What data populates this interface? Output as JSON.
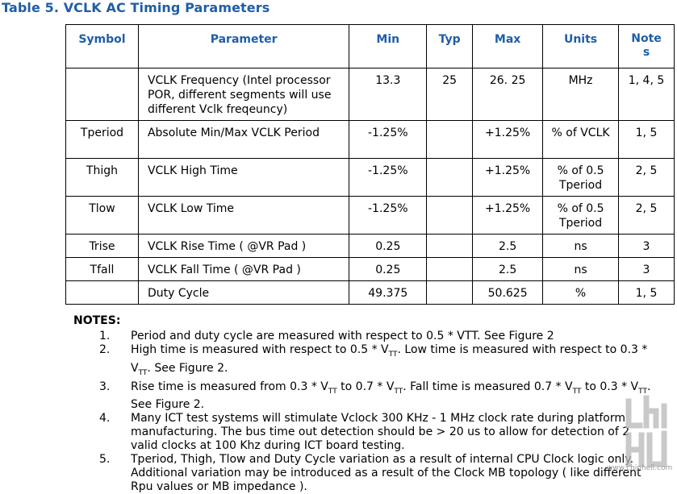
{
  "title": "Table 5. VCLK AC Timing Parameters",
  "headers": {
    "symbol": "Symbol",
    "parameter": "Parameter",
    "min": "Min",
    "typ": "Typ",
    "max": "Max",
    "units": "Units",
    "notes": "Note s"
  },
  "rows": [
    {
      "symbol": "",
      "parameter": "VCLK Frequency (Intel processor POR, different segments will use different Vclk freqeuncy)",
      "min": "13.3",
      "typ": "25",
      "max": "26. 25",
      "units": "MHz",
      "notes": "1, 4, 5"
    },
    {
      "symbol": "Tperiod",
      "parameter": "Absolute Min/Max VCLK Period",
      "min": "-1.25%",
      "typ": "",
      "max": "+1.25%",
      "units": "% of VCLK",
      "notes": "1, 5"
    },
    {
      "symbol": "Thigh",
      "parameter": "VCLK High Time",
      "min": "-1.25%",
      "typ": "",
      "max": "+1.25%",
      "units": "% of 0.5 Tperiod",
      "notes": "2, 5"
    },
    {
      "symbol": "Tlow",
      "parameter": "VCLK Low Time",
      "min": "-1.25%",
      "typ": "",
      "max": "+1.25%",
      "units": "% of 0.5 Tperiod",
      "notes": "2, 5"
    },
    {
      "symbol": "Trise",
      "parameter": "VCLK Rise Time ( @VR Pad )",
      "min": "0.25",
      "typ": "",
      "max": "2.5",
      "units": "ns",
      "notes": "3"
    },
    {
      "symbol": "Tfall",
      "parameter": "VCLK Fall Time ( @VR Pad )",
      "min": "0.25",
      "typ": "",
      "max": "2.5",
      "units": "ns",
      "notes": "3"
    },
    {
      "symbol": "",
      "parameter": "Duty Cycle",
      "min": "49.375",
      "typ": "",
      "max": "50.625",
      "units": "%",
      "notes": "1, 5"
    }
  ],
  "notes": {
    "title": "NOTES:",
    "items": [
      {
        "num": "1.",
        "parts": [
          "Period and duty cycle are measured with respect to 0.5 * VTT. See Figure 2"
        ]
      },
      {
        "num": "2.",
        "parts": [
          "High time is measured with respect to 0.5 * V",
          "TT",
          ". Low time is measured with respect to 0.3 * V",
          "TT",
          ". See Figure 2."
        ]
      },
      {
        "num": "3.",
        "parts": [
          "Rise time is measured from 0.3 * V",
          "TT",
          " to 0.7 * V",
          "TT",
          ". Fall time is measured 0.7 * V",
          "TT",
          " to 0.3 * V",
          "TT",
          ". See Figure 2."
        ]
      },
      {
        "num": "4.",
        "parts": [
          "Many ICT test systems will stimulate Vclock 300 KHz - 1 MHz clock rate during platform manufacturing.  The bus time out detection should be > 20 us to allow for detection of 2 valid clocks at 100 Khz during ICT board testing."
        ]
      },
      {
        "num": "5.",
        "parts": [
          "Tperiod, Thigh, Tlow and Duty Cycle variation as a result of internal CPU Clock logic only. Additional variation may be introduced as a result of the Clock MB topology ( like different Rpu values or MB impedance )."
        ]
      }
    ]
  },
  "watermark": {
    "caption": "www.chiphell.com"
  }
}
